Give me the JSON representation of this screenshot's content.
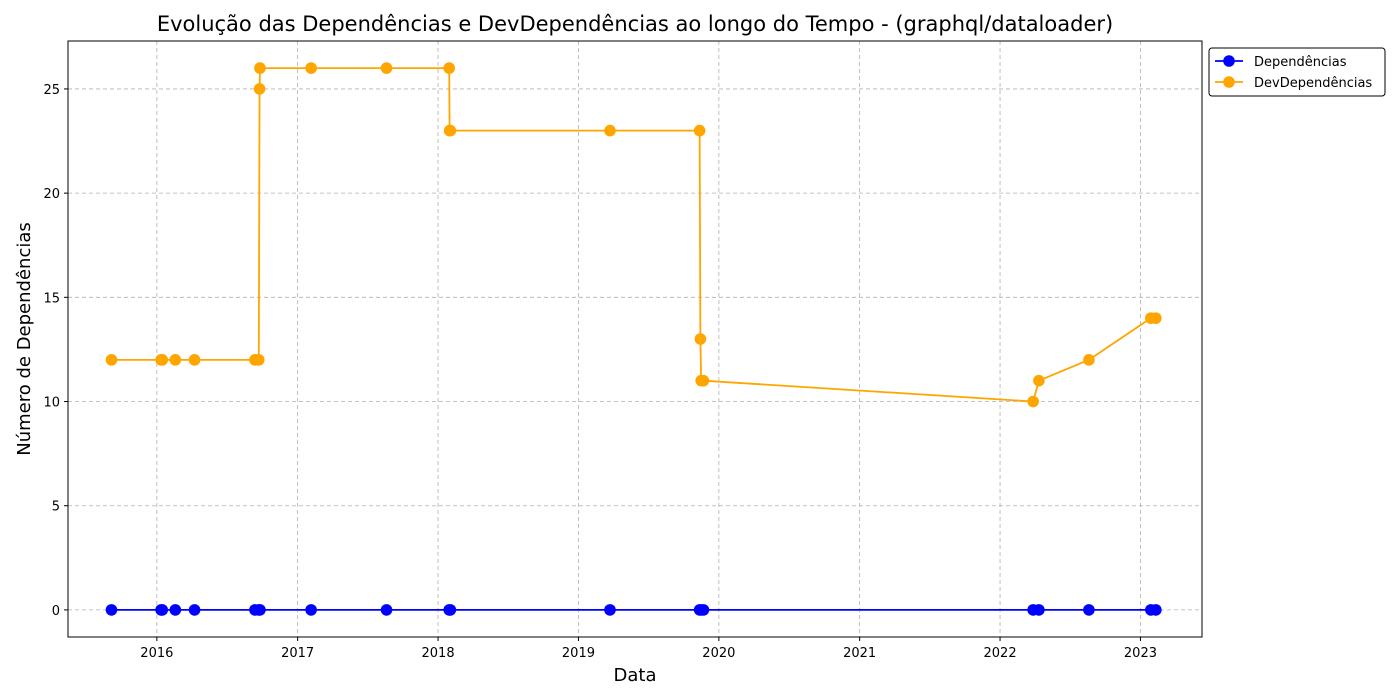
{
  "chart_data": {
    "type": "line",
    "title": "Evolução das Dependências e DevDependências ao longo do Tempo - (graphql/dataloader)",
    "xlabel": "Data",
    "ylabel": "Número de Dependências",
    "xlim": [
      "2015-05-15",
      "2023-06-10"
    ],
    "ylim": [
      -1.3,
      27.3
    ],
    "xticks": [
      "2016",
      "2017",
      "2018",
      "2019",
      "2020",
      "2021",
      "2022",
      "2023"
    ],
    "yticks": [
      "0",
      "5",
      "10",
      "15",
      "20",
      "25"
    ],
    "grid": true,
    "legend_position": "upper-right outside",
    "series": [
      {
        "name": "Dependências",
        "color": "#0000ff",
        "x": [
          "2015-09-05",
          "2016-01-12",
          "2016-01-15",
          "2016-02-18",
          "2016-04-08",
          "2016-09-12",
          "2016-09-22",
          "2016-09-25",
          "2017-02-05",
          "2017-08-20",
          "2018-01-30",
          "2018-02-02",
          "2019-03-24",
          "2019-11-12",
          "2019-11-16",
          "2019-11-22",
          "2022-03-28",
          "2022-04-12",
          "2022-08-20",
          "2023-01-28",
          "2023-02-10"
        ],
        "values": [
          0,
          0,
          0,
          0,
          0,
          0,
          0,
          0,
          0,
          0,
          0,
          0,
          0,
          0,
          0,
          0,
          0,
          0,
          0,
          0,
          0
        ]
      },
      {
        "name": "DevDependências",
        "color": "#ffa500",
        "x": [
          "2015-09-05",
          "2016-01-12",
          "2016-01-15",
          "2016-02-18",
          "2016-04-08",
          "2016-09-12",
          "2016-09-22",
          "2016-09-24",
          "2016-09-25",
          "2017-02-05",
          "2017-08-20",
          "2018-01-30",
          "2018-01-31",
          "2018-02-02",
          "2019-03-24",
          "2019-11-12",
          "2019-11-14",
          "2019-11-16",
          "2019-11-22",
          "2022-03-28",
          "2022-04-12",
          "2022-08-20",
          "2023-01-28",
          "2023-02-10"
        ],
        "values": [
          12,
          12,
          12,
          12,
          12,
          12,
          12,
          25,
          26,
          26,
          26,
          26,
          23,
          23,
          23,
          23,
          13,
          11,
          11,
          10,
          11,
          12,
          14,
          14
        ]
      }
    ]
  }
}
